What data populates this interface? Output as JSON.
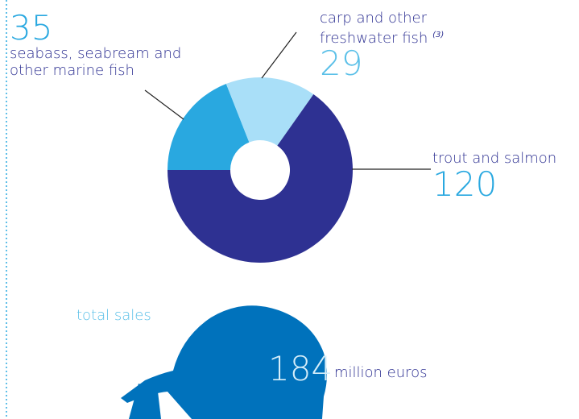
{
  "chart_data": {
    "type": "donut",
    "categories": [
      "seabass, seabream and\nother marine fish",
      "carp and other\nfreshwater fish",
      "trout and salmon"
    ],
    "footnotes": [
      null,
      "(3)",
      null
    ],
    "values": [
      35,
      29,
      120
    ],
    "colors": [
      "#29a8e0",
      "#a9dff8",
      "#2e3192"
    ]
  },
  "total": {
    "label": "total sales",
    "value": 184,
    "unit": "million euros"
  }
}
